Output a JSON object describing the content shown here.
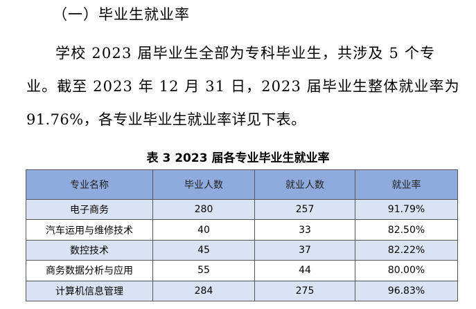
{
  "section_heading": "（一）毕业生就业率",
  "paragraph_lines": [
    "学校 2023 届毕业生全部为专科毕业生，共涉及 5 个专",
    "业。截至 2023 年 12 月 31 日，2023 届毕业生整体就业率为",
    "91.76%，各专业毕业生就业率详见下表。"
  ],
  "table_caption": "表 3   2023 届各专业毕业生就业率",
  "table": {
    "columns": [
      "专业名称",
      "毕业人数",
      "就业人数",
      "就业率"
    ],
    "rows": [
      [
        "电子商务",
        "280",
        "257",
        "91.79%"
      ],
      [
        "汽车运用与维修技术",
        "40",
        "33",
        "82.50%"
      ],
      [
        "数控技术",
        "45",
        "37",
        "82.22%"
      ],
      [
        "商务数据分析与应用",
        "55",
        "44",
        "80.00%"
      ],
      [
        "计算机信息管理",
        "284",
        "275",
        "96.83%"
      ]
    ]
  },
  "colors": {
    "header_fill": "#8faadc",
    "band_fill": "#dae3f3",
    "grid_line": "#555555"
  }
}
